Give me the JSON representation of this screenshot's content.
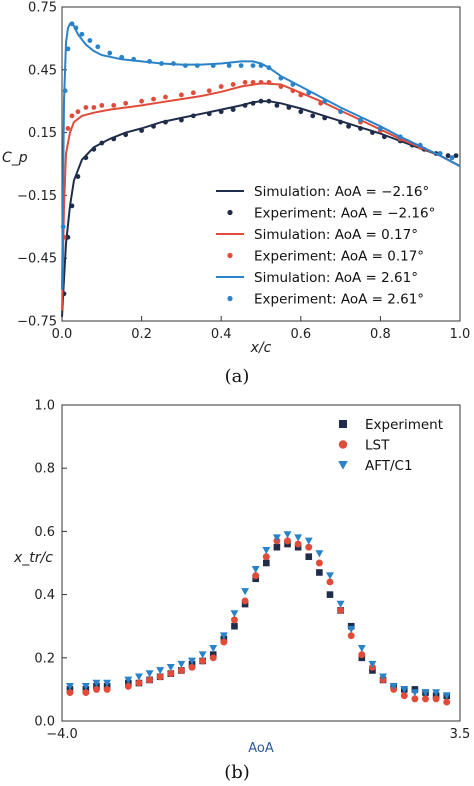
{
  "colors": {
    "dark": "#1f2d4a",
    "red": "#e04b3a",
    "blue": "#2a82c8",
    "axis": "#333333"
  },
  "chart_data": [
    {
      "type": "line",
      "caption": "(a)",
      "xlabel": "x/c",
      "ylabel": "C_p",
      "xlim": [
        0.0,
        1.0
      ],
      "ylim": [
        0.75,
        -0.75
      ],
      "y_inverted": true,
      "xticks": [
        "0.0",
        "0.2",
        "0.4",
        "0.6",
        "0.8",
        "1.0"
      ],
      "yticks": [
        "0.75",
        "0.45",
        "0.15",
        "−0.15",
        "−0.45",
        "−0.75"
      ],
      "xtick_values": [
        0.0,
        0.2,
        0.4,
        0.6,
        0.8,
        1.0
      ],
      "ytick_values": [
        0.75,
        0.45,
        0.15,
        -0.15,
        -0.45,
        -0.75
      ],
      "legend_position": "lower-right",
      "series": [
        {
          "name": "Simulation: AoA = −2.16°",
          "style": "line",
          "color": "#1f2d4a",
          "x": [
            0.0,
            0.005,
            0.01,
            0.02,
            0.03,
            0.05,
            0.08,
            0.12,
            0.16,
            0.2,
            0.25,
            0.3,
            0.35,
            0.4,
            0.45,
            0.48,
            0.5,
            0.52,
            0.55,
            0.6,
            0.65,
            0.7,
            0.75,
            0.8,
            0.85,
            0.9,
            0.95,
            1.0
          ],
          "y": [
            -0.73,
            -0.55,
            -0.38,
            -0.2,
            -0.08,
            0.02,
            0.08,
            0.12,
            0.15,
            0.17,
            0.2,
            0.22,
            0.24,
            0.26,
            0.28,
            0.295,
            0.3,
            0.3,
            0.29,
            0.265,
            0.235,
            0.205,
            0.175,
            0.145,
            0.11,
            0.075,
            0.04,
            -0.01
          ]
        },
        {
          "name": "Experiment: AoA = −2.16°",
          "style": "markers",
          "color": "#1f2d4a",
          "x": [
            0.005,
            0.015,
            0.025,
            0.04,
            0.06,
            0.08,
            0.1,
            0.13,
            0.16,
            0.2,
            0.23,
            0.26,
            0.3,
            0.33,
            0.37,
            0.4,
            0.43,
            0.46,
            0.48,
            0.5,
            0.52,
            0.54,
            0.57,
            0.6,
            0.63,
            0.66,
            0.7,
            0.72,
            0.75,
            0.78,
            0.81,
            0.85,
            0.88,
            0.91,
            0.94,
            0.97,
            0.99
          ],
          "y": [
            -0.62,
            -0.35,
            -0.2,
            -0.06,
            0.03,
            0.07,
            0.1,
            0.12,
            0.14,
            0.16,
            0.18,
            0.2,
            0.21,
            0.23,
            0.24,
            0.25,
            0.26,
            0.28,
            0.29,
            0.3,
            0.3,
            0.28,
            0.27,
            0.25,
            0.23,
            0.22,
            0.2,
            0.18,
            0.17,
            0.15,
            0.13,
            0.11,
            0.09,
            0.07,
            0.05,
            0.04,
            0.04
          ]
        },
        {
          "name": "Simulation: AoA = 0.17°",
          "style": "line",
          "color": "#e04b3a",
          "x": [
            0.0,
            0.005,
            0.01,
            0.02,
            0.03,
            0.05,
            0.08,
            0.12,
            0.16,
            0.2,
            0.25,
            0.3,
            0.35,
            0.4,
            0.45,
            0.5,
            0.55,
            0.6,
            0.65,
            0.7,
            0.75,
            0.8,
            0.85,
            0.9,
            0.95,
            1.0
          ],
          "y": [
            -0.7,
            -0.2,
            0.05,
            0.15,
            0.2,
            0.23,
            0.245,
            0.26,
            0.27,
            0.28,
            0.295,
            0.31,
            0.325,
            0.345,
            0.37,
            0.385,
            0.38,
            0.34,
            0.3,
            0.255,
            0.21,
            0.165,
            0.12,
            0.08,
            0.04,
            -0.01
          ]
        },
        {
          "name": "Experiment: AoA = 0.17°",
          "style": "markers",
          "color": "#e04b3a",
          "x": [
            0.005,
            0.015,
            0.025,
            0.04,
            0.06,
            0.08,
            0.1,
            0.13,
            0.16,
            0.2,
            0.23,
            0.26,
            0.3,
            0.33,
            0.37,
            0.4,
            0.43,
            0.46,
            0.48,
            0.5,
            0.52,
            0.55,
            0.58,
            0.6,
            0.65,
            0.7,
            0.75,
            0.8,
            0.85,
            0.9,
            0.95,
            0.98
          ],
          "y": [
            -0.35,
            0.17,
            0.23,
            0.25,
            0.27,
            0.27,
            0.28,
            0.28,
            0.29,
            0.3,
            0.31,
            0.32,
            0.33,
            0.34,
            0.35,
            0.37,
            0.38,
            0.39,
            0.39,
            0.39,
            0.39,
            0.37,
            0.35,
            0.33,
            0.29,
            0.25,
            0.2,
            0.16,
            0.12,
            0.08,
            0.05,
            0.03
          ]
        },
        {
          "name": "Simulation: AoA = 2.61°",
          "style": "line",
          "color": "#2a82c8",
          "x": [
            0.0,
            0.005,
            0.01,
            0.015,
            0.02,
            0.025,
            0.03,
            0.04,
            0.06,
            0.08,
            0.1,
            0.15,
            0.2,
            0.25,
            0.3,
            0.35,
            0.4,
            0.45,
            0.48,
            0.5,
            0.52,
            0.55,
            0.6,
            0.65,
            0.7,
            0.75,
            0.8,
            0.85,
            0.9,
            0.95,
            1.0
          ],
          "y": [
            -0.6,
            0.3,
            0.58,
            0.65,
            0.67,
            0.67,
            0.66,
            0.62,
            0.57,
            0.54,
            0.52,
            0.5,
            0.49,
            0.48,
            0.475,
            0.475,
            0.48,
            0.49,
            0.49,
            0.48,
            0.46,
            0.42,
            0.37,
            0.32,
            0.27,
            0.225,
            0.18,
            0.13,
            0.085,
            0.04,
            -0.01
          ]
        },
        {
          "name": "Experiment: AoA = 2.61°",
          "style": "markers",
          "color": "#2a82c8",
          "x": [
            0.003,
            0.008,
            0.015,
            0.025,
            0.035,
            0.05,
            0.07,
            0.09,
            0.12,
            0.15,
            0.18,
            0.22,
            0.25,
            0.28,
            0.31,
            0.34,
            0.38,
            0.42,
            0.45,
            0.48,
            0.5,
            0.52,
            0.55,
            0.58,
            0.62,
            0.66,
            0.7,
            0.75,
            0.8,
            0.85,
            0.9,
            0.95,
            0.98
          ],
          "y": [
            -0.3,
            0.35,
            0.55,
            0.67,
            0.65,
            0.62,
            0.59,
            0.56,
            0.53,
            0.51,
            0.5,
            0.49,
            0.48,
            0.48,
            0.47,
            0.47,
            0.47,
            0.47,
            0.47,
            0.47,
            0.47,
            0.46,
            0.41,
            0.38,
            0.34,
            0.3,
            0.25,
            0.21,
            0.17,
            0.13,
            0.09,
            0.05,
            0.03
          ]
        }
      ]
    },
    {
      "type": "scatter",
      "caption": "(b)",
      "xlabel": "AoA",
      "ylabel": "x_tr/c",
      "xlim": [
        -4.0,
        3.5
      ],
      "ylim": [
        0.0,
        1.0
      ],
      "xticks": [
        "−4.0",
        "3.5"
      ],
      "xtick_values": [
        -4.0,
        3.5
      ],
      "yticks": [
        "0.0",
        "0.2",
        "0.4",
        "0.6",
        "0.8",
        "1.0"
      ],
      "ytick_values": [
        0.0,
        0.2,
        0.4,
        0.6,
        0.8,
        1.0
      ],
      "legend_position": "top-right",
      "series": [
        {
          "name": "Experiment",
          "marker": "square",
          "color": "#1f2d4a",
          "x": [
            -3.85,
            -3.55,
            -3.35,
            -3.15,
            -2.75,
            -2.55,
            -2.35,
            -2.15,
            -1.95,
            -1.75,
            -1.55,
            -1.35,
            -1.15,
            -0.95,
            -0.75,
            -0.55,
            -0.35,
            -0.15,
            0.05,
            0.25,
            0.45,
            0.65,
            0.85,
            1.05,
            1.25,
            1.45,
            1.65,
            1.85,
            2.05,
            2.25,
            2.45,
            2.65,
            2.85,
            3.05,
            3.25
          ],
          "y": [
            0.1,
            0.1,
            0.11,
            0.11,
            0.12,
            0.12,
            0.13,
            0.14,
            0.15,
            0.16,
            0.18,
            0.19,
            0.21,
            0.26,
            0.3,
            0.37,
            0.45,
            0.5,
            0.55,
            0.56,
            0.55,
            0.52,
            0.47,
            0.4,
            0.35,
            0.3,
            0.2,
            0.16,
            0.13,
            0.11,
            0.1,
            0.1,
            0.09,
            0.08,
            0.08
          ]
        },
        {
          "name": "LST",
          "marker": "circle",
          "color": "#e04b3a",
          "x": [
            -3.85,
            -3.55,
            -3.35,
            -3.15,
            -2.75,
            -2.55,
            -2.35,
            -2.15,
            -1.95,
            -1.75,
            -1.55,
            -1.35,
            -1.15,
            -0.95,
            -0.75,
            -0.55,
            -0.35,
            -0.15,
            0.05,
            0.25,
            0.45,
            0.65,
            0.85,
            1.05,
            1.25,
            1.45,
            1.65,
            1.85,
            2.05,
            2.25,
            2.45,
            2.65,
            2.85,
            3.05,
            3.25
          ],
          "y": [
            0.09,
            0.09,
            0.1,
            0.1,
            0.11,
            0.12,
            0.13,
            0.14,
            0.15,
            0.16,
            0.17,
            0.19,
            0.2,
            0.25,
            0.32,
            0.38,
            0.46,
            0.52,
            0.57,
            0.57,
            0.56,
            0.55,
            0.5,
            0.44,
            0.35,
            0.27,
            0.21,
            0.17,
            0.13,
            0.1,
            0.08,
            0.07,
            0.07,
            0.07,
            0.06
          ]
        },
        {
          "name": "AFT/C1",
          "marker": "triangle-down",
          "color": "#2a82c8",
          "x": [
            -3.85,
            -3.55,
            -3.35,
            -3.15,
            -2.75,
            -2.55,
            -2.35,
            -2.15,
            -1.95,
            -1.75,
            -1.55,
            -1.35,
            -1.15,
            -0.95,
            -0.75,
            -0.55,
            -0.35,
            -0.15,
            0.05,
            0.25,
            0.45,
            0.65,
            0.85,
            1.05,
            1.25,
            1.45,
            1.65,
            1.85,
            2.05,
            2.25,
            2.45,
            2.65,
            2.85,
            3.05,
            3.25
          ],
          "y": [
            0.11,
            0.11,
            0.12,
            0.12,
            0.13,
            0.14,
            0.15,
            0.16,
            0.17,
            0.18,
            0.19,
            0.21,
            0.23,
            0.27,
            0.34,
            0.41,
            0.48,
            0.54,
            0.58,
            0.59,
            0.58,
            0.57,
            0.53,
            0.46,
            0.37,
            0.29,
            0.23,
            0.18,
            0.14,
            0.11,
            0.1,
            0.09,
            0.09,
            0.09,
            0.08
          ]
        }
      ]
    }
  ]
}
